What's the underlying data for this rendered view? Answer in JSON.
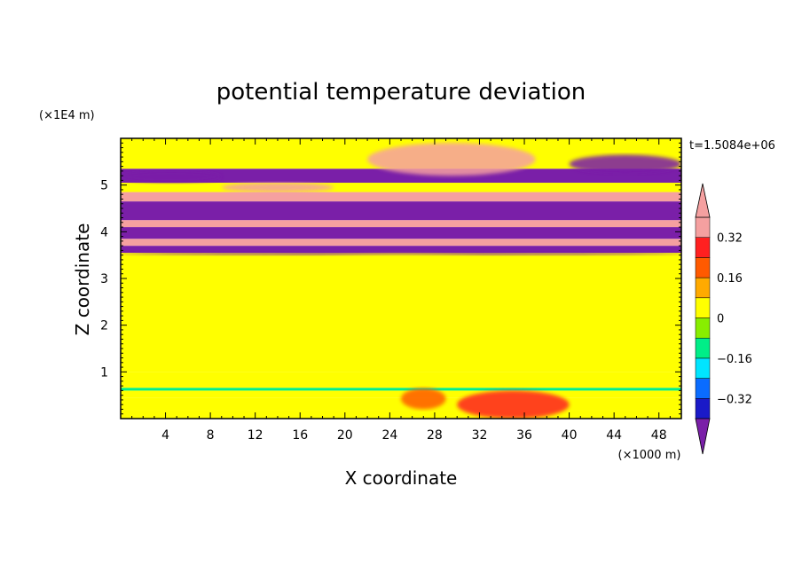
{
  "chart_data": {
    "type": "heatmap",
    "title": "potential temperature deviation",
    "time_label": "t=1.5084e+06",
    "xlabel": "X coordinate",
    "ylabel": "Z coordinate",
    "x_unit": "(×1000 m)",
    "y_unit": "(×1E4 m)",
    "xlim": [
      0,
      50
    ],
    "ylim": [
      0,
      6
    ],
    "x_ticks": [
      4,
      8,
      12,
      16,
      20,
      24,
      28,
      32,
      36,
      40,
      44,
      48
    ],
    "x_tick_labels": [
      "4",
      "8",
      "12",
      "16",
      "20",
      "24",
      "28",
      "32",
      "36",
      "40",
      "44",
      "48"
    ],
    "y_ticks": [
      1,
      2,
      3,
      4,
      5
    ],
    "y_tick_labels": [
      "1",
      "2",
      "3",
      "4",
      "5"
    ],
    "colorbar": {
      "levels": [
        -0.4,
        -0.32,
        -0.24,
        -0.16,
        -0.08,
        0,
        0.08,
        0.16,
        0.24,
        0.32,
        0.4
      ],
      "tick_values": [
        0.32,
        0.16,
        0,
        -0.16,
        -0.32
      ],
      "tick_labels": [
        "0.32",
        "0.16",
        "0",
        "−0.16",
        "−0.32"
      ],
      "colors": [
        "#7a1fa8",
        "#1a1ac8",
        "#0a6cff",
        "#00e5ff",
        "#00ee88",
        "#88ee00",
        "#ffff00",
        "#ffaa00",
        "#ff5a00",
        "#ff2020",
        "#f5a0a0"
      ],
      "extend": "both"
    },
    "bands": [
      {
        "y": [
          0.0,
          0.18
        ],
        "value": 0.04
      },
      {
        "y": [
          0.18,
          0.45
        ],
        "value": 0.0
      },
      {
        "y": [
          0.45,
          0.6
        ],
        "value": 0.04
      },
      {
        "y": [
          0.6,
          0.66
        ],
        "value": -0.12
      },
      {
        "y": [
          0.66,
          1.0
        ],
        "value": 0.04
      },
      {
        "y": [
          1.0,
          3.55
        ],
        "value": 0.0
      },
      {
        "y": [
          3.55,
          3.7
        ],
        "value": -0.45
      },
      {
        "y": [
          3.7,
          3.85
        ],
        "value": 0.45
      },
      {
        "y": [
          3.85,
          4.1
        ],
        "value": -0.45
      },
      {
        "y": [
          4.1,
          4.25
        ],
        "value": 0.45
      },
      {
        "y": [
          4.25,
          4.65
        ],
        "value": -0.45
      },
      {
        "y": [
          4.65,
          4.85
        ],
        "value": 0.45
      },
      {
        "y": [
          4.85,
          5.05
        ],
        "value": 0.0
      },
      {
        "y": [
          5.05,
          5.35
        ],
        "value": -0.45
      },
      {
        "y": [
          5.35,
          6.0
        ],
        "value": 0.0
      }
    ],
    "features": [
      {
        "x": [
          30,
          40
        ],
        "y": [
          0.0,
          0.6
        ],
        "value": 0.3
      },
      {
        "x": [
          25,
          29
        ],
        "y": [
          0.2,
          0.65
        ],
        "value": 0.2
      },
      {
        "x": [
          22,
          37
        ],
        "y": [
          5.2,
          5.9
        ],
        "value": 0.4
      },
      {
        "x": [
          0,
          9
        ],
        "y": [
          5.05,
          5.3
        ],
        "value": -0.45
      },
      {
        "x": [
          40,
          50
        ],
        "y": [
          5.25,
          5.65
        ],
        "value": -0.45
      },
      {
        "x": [
          0,
          50
        ],
        "y": [
          3.5,
          3.58
        ],
        "value": -0.45
      },
      {
        "x": [
          9,
          19
        ],
        "y": [
          4.85,
          5.05
        ],
        "value": 0.45
      },
      {
        "x": [
          0,
          50
        ],
        "y": [
          1.0,
          3.5
        ],
        "value": 0.04
      }
    ]
  }
}
